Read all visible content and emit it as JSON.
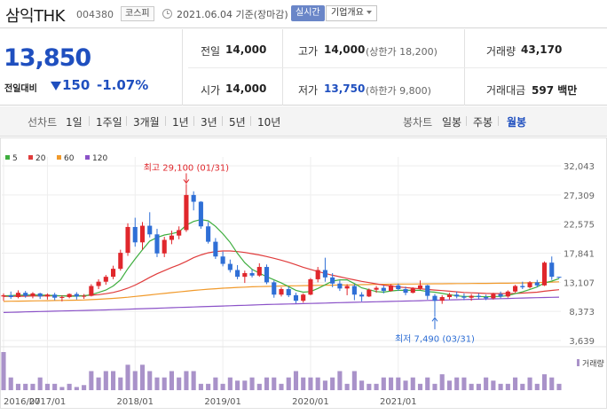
{
  "header": {
    "stock_name": "삼익THK",
    "stock_code": "004380",
    "market": "코스피",
    "base_date": "2021.06.04 기준(장마감)",
    "realtime_label": "실시간",
    "company_label": "기업개요"
  },
  "price": {
    "current": "13,850",
    "vs_label": "전일대비",
    "change": "150",
    "change_rate": "-1.07%"
  },
  "quote": {
    "prev_close_label": "전일",
    "prev_close": "14,000",
    "high_label": "고가",
    "high": "14,000",
    "upper_limit": "(상한가 18,200)",
    "volume_label": "거래량",
    "volume": "43,170",
    "open_label": "시가",
    "open": "14,000",
    "low_label": "저가",
    "low": "13,750",
    "lower_limit": "(하한가 9,800)",
    "amount_label": "거래대금",
    "amount": "597 백만"
  },
  "periods": {
    "line_label": "선차트",
    "line_items": [
      "1일",
      "1주일",
      "3개월",
      "1년",
      "3년",
      "5년",
      "10년"
    ],
    "candle_label": "봉차트",
    "candle_items": [
      "일봉",
      "주봉",
      "월봉"
    ],
    "active_candle": "월봉"
  },
  "colors": {
    "up": "#e0272c",
    "down": "#2f6fd6",
    "ma5": "#3fae3f",
    "ma20": "#e03c3c",
    "ma60": "#f19a2b",
    "ma120": "#8b52c8",
    "volume": "#a992c9"
  },
  "chart_data": {
    "type": "candlestick",
    "interval": "monthly",
    "x_ticks": [
      "2016/07",
      "2017/01",
      "2018/01",
      "2019/01",
      "2020/01",
      "2021/01"
    ],
    "y_ticks": [
      "32,043",
      "27,309",
      "22,575",
      "17,841",
      "13,107",
      "8,373",
      "3,639"
    ],
    "ylim": [
      3639,
      32043
    ],
    "legend": [
      {
        "name": "5",
        "color": "#3fae3f"
      },
      {
        "name": "20",
        "color": "#e03c3c"
      },
      {
        "name": "60",
        "color": "#f19a2b"
      },
      {
        "name": "120",
        "color": "#8b52c8"
      }
    ],
    "volume_label": "거래량",
    "annotations": {
      "high_text": "최고 29,100 (01/31)",
      "low_text": "최저 7,490 (03/31)"
    },
    "candles": [
      [
        10800,
        11300,
        10100,
        11000
      ],
      [
        11000,
        11600,
        10400,
        10700
      ],
      [
        10700,
        11800,
        10500,
        11400
      ],
      [
        11400,
        11700,
        10600,
        10900
      ],
      [
        10900,
        11500,
        10500,
        11300
      ],
      [
        11300,
        11400,
        10400,
        10800
      ],
      [
        10800,
        11300,
        10300,
        11100
      ],
      [
        11100,
        11400,
        10200,
        10600
      ],
      [
        10600,
        11000,
        10000,
        10700
      ],
      [
        10700,
        11300,
        10500,
        11200
      ],
      [
        11200,
        11500,
        10300,
        10800
      ],
      [
        10800,
        11200,
        10400,
        10900
      ],
      [
        10900,
        12800,
        10800,
        12500
      ],
      [
        12500,
        13600,
        12000,
        13200
      ],
      [
        13200,
        14300,
        12700,
        14000
      ],
      [
        14000,
        15800,
        13600,
        15300
      ],
      [
        15300,
        18400,
        15000,
        17900
      ],
      [
        17900,
        22700,
        17400,
        22100
      ],
      [
        22100,
        23600,
        18900,
        19600
      ],
      [
        19600,
        22900,
        18400,
        22300
      ],
      [
        22300,
        24500,
        20400,
        20900
      ],
      [
        20900,
        21800,
        17200,
        17800
      ],
      [
        17800,
        20500,
        17200,
        20000
      ],
      [
        20000,
        21500,
        19300,
        20700
      ],
      [
        20700,
        22200,
        20100,
        21600
      ],
      [
        21600,
        29100,
        21300,
        27300
      ],
      [
        27300,
        27900,
        24800,
        26200
      ],
      [
        26200,
        26300,
        21800,
        22200
      ],
      [
        22200,
        22900,
        19400,
        19700
      ],
      [
        19700,
        20300,
        16900,
        17300
      ],
      [
        17300,
        18100,
        15700,
        16100
      ],
      [
        16100,
        16800,
        14700,
        15100
      ],
      [
        15100,
        15900,
        13600,
        14000
      ],
      [
        14000,
        15000,
        13000,
        14600
      ],
      [
        14600,
        15200,
        13900,
        14200
      ],
      [
        14200,
        16200,
        14000,
        15600
      ],
      [
        15600,
        16000,
        12800,
        13100
      ],
      [
        13100,
        13400,
        10600,
        11100
      ],
      [
        11100,
        12300,
        10800,
        12000
      ],
      [
        12000,
        12400,
        10700,
        11000
      ],
      [
        11000,
        11400,
        9700,
        10100
      ],
      [
        10100,
        11300,
        9800,
        11100
      ],
      [
        11100,
        13800,
        11000,
        13600
      ],
      [
        13600,
        15600,
        13100,
        15100
      ],
      [
        15100,
        17100,
        13200,
        13900
      ],
      [
        13900,
        14600,
        12300,
        12900
      ],
      [
        12900,
        13400,
        11700,
        12100
      ],
      [
        12100,
        12800,
        11000,
        12500
      ],
      [
        12500,
        12800,
        10200,
        11100
      ],
      [
        11100,
        11500,
        10000,
        10800
      ],
      [
        10800,
        12100,
        10700,
        11900
      ],
      [
        11900,
        12500,
        11400,
        12200
      ],
      [
        12200,
        12600,
        11300,
        11700
      ],
      [
        11700,
        12800,
        11600,
        12600
      ],
      [
        12600,
        12900,
        11700,
        12000
      ],
      [
        12000,
        12400,
        11000,
        11400
      ],
      [
        11400,
        12300,
        11300,
        12100
      ],
      [
        12100,
        13400,
        11900,
        12600
      ],
      [
        12600,
        12700,
        10300,
        10900
      ],
      [
        10900,
        11200,
        7490,
        10100
      ],
      [
        10100,
        11000,
        9600,
        10700
      ],
      [
        10700,
        11400,
        10300,
        11100
      ],
      [
        11100,
        11600,
        10500,
        10800
      ],
      [
        10800,
        11300,
        10200,
        10600
      ],
      [
        10600,
        11200,
        10100,
        10900
      ],
      [
        10900,
        11300,
        10400,
        10700
      ],
      [
        10700,
        11100,
        10200,
        10500
      ],
      [
        10500,
        11400,
        10300,
        11200
      ],
      [
        11200,
        11600,
        10500,
        10800
      ],
      [
        10800,
        11800,
        10600,
        11600
      ],
      [
        11600,
        12700,
        11400,
        12500
      ],
      [
        12500,
        13200,
        12000,
        12300
      ],
      [
        12300,
        13300,
        12100,
        13100
      ],
      [
        13100,
        13500,
        12300,
        12600
      ],
      [
        12600,
        16500,
        12500,
        16300
      ],
      [
        16300,
        17300,
        13500,
        14000
      ],
      [
        14000,
        14000,
        13750,
        13850
      ]
    ],
    "ma5": [
      10900,
      10950,
      11000,
      11000,
      11050,
      11000,
      11000,
      10950,
      10900,
      10850,
      10850,
      10900,
      11100,
      11450,
      11850,
      12500,
      13500,
      15300,
      16900,
      18400,
      19800,
      20400,
      20800,
      21000,
      21300,
      22400,
      23000,
      23300,
      23100,
      22200,
      21000,
      19600,
      17800,
      16300,
      15200,
      14600,
      14000,
      13500,
      13000,
      12400,
      11800,
      11500,
      11600,
      12100,
      12700,
      13300,
      13500,
      13500,
      12900,
      12200,
      11900,
      11600,
      11500,
      11700,
      11800,
      11800,
      11800,
      11800,
      11600,
      11500,
      11300,
      11100,
      10900,
      10800,
      10800,
      10800,
      10750,
      10800,
      10800,
      10950,
      11250,
      11550,
      11950,
      12350,
      13000,
      13300,
      13700
    ],
    "ma20": [
      10800,
      10820,
      10840,
      10850,
      10870,
      10880,
      10890,
      10900,
      10900,
      10910,
      10920,
      10930,
      11000,
      11100,
      11250,
      11450,
      11750,
      12150,
      12650,
      13250,
      13900,
      14500,
      15000,
      15500,
      15950,
      16500,
      17100,
      17550,
      17900,
      18100,
      18200,
      18200,
      18100,
      17950,
      17750,
      17550,
      17300,
      17000,
      16700,
      16350,
      15950,
      15550,
      15200,
      14850,
      14550,
      14250,
      14000,
      13750,
      13500,
      13250,
      13050,
      12850,
      12650,
      12500,
      12350,
      12250,
      12150,
      12050,
      11950,
      11850,
      11750,
      11650,
      11550,
      11450,
      11400,
      11350,
      11300,
      11280,
      11270,
      11280,
      11300,
      11350,
      11420,
      11500,
      11650,
      11780,
      11900
    ],
    "ma60": [
      10000,
      10020,
      10040,
      10060,
      10080,
      10100,
      10120,
      10140,
      10160,
      10180,
      10200,
      10230,
      10280,
      10340,
      10410,
      10490,
      10580,
      10680,
      10800,
      10920,
      11050,
      11180,
      11300,
      11420,
      11540,
      11660,
      11780,
      11880,
      11980,
      12060,
      12140,
      12210,
      12270,
      12320,
      12370,
      12410,
      12440,
      12470,
      12500,
      12520,
      12540,
      12560,
      12580,
      12600,
      12620,
      12640,
      12660,
      12680,
      12700,
      12720,
      12740,
      12760,
      12780,
      12800,
      12810,
      12820,
      12830,
      12840,
      12850,
      12860,
      12870,
      12880,
      12890,
      12900,
      12910,
      12920,
      12930,
      12940,
      12950,
      12960,
      12980,
      13000,
      13030,
      13060,
      13100,
      13140,
      13180
    ],
    "ma120": [
      8200,
      8230,
      8260,
      8290,
      8320,
      8350,
      8380,
      8410,
      8440,
      8470,
      8500,
      8530,
      8560,
      8590,
      8620,
      8650,
      8690,
      8730,
      8770,
      8810,
      8850,
      8890,
      8930,
      8970,
      9010,
      9050,
      9090,
      9130,
      9170,
      9210,
      9250,
      9290,
      9330,
      9370,
      9410,
      9450,
      9490,
      9520,
      9550,
      9580,
      9610,
      9640,
      9670,
      9700,
      9730,
      9760,
      9790,
      9820,
      9850,
      9880,
      9910,
      9940,
      9970,
      10000,
      10030,
      10060,
      10090,
      10120,
      10150,
      10180,
      10210,
      10240,
      10270,
      10300,
      10330,
      10360,
      10390,
      10420,
      10450,
      10480,
      10510,
      10540,
      10570,
      10600,
      10630,
      10660,
      10690
    ],
    "volume": [
      6,
      2,
      1,
      1,
      1,
      2,
      1,
      1,
      0.5,
      1,
      0.5,
      0.8,
      3,
      2,
      3,
      3,
      2,
      4,
      3,
      4,
      3,
      2,
      2,
      3,
      2,
      3,
      3,
      1,
      1,
      2,
      1,
      2,
      1.5,
      1.5,
      2,
      1,
      2,
      2,
      1,
      2,
      3,
      2,
      2,
      2,
      1.5,
      2,
      3,
      1,
      3,
      1.5,
      1,
      1,
      2,
      2,
      2,
      1.5,
      2,
      1,
      2,
      1,
      2.5,
      1.5,
      2,
      2,
      1,
      1,
      2,
      1.5,
      1,
      1,
      2,
      1,
      2,
      1,
      2.5,
      2,
      1
    ]
  }
}
